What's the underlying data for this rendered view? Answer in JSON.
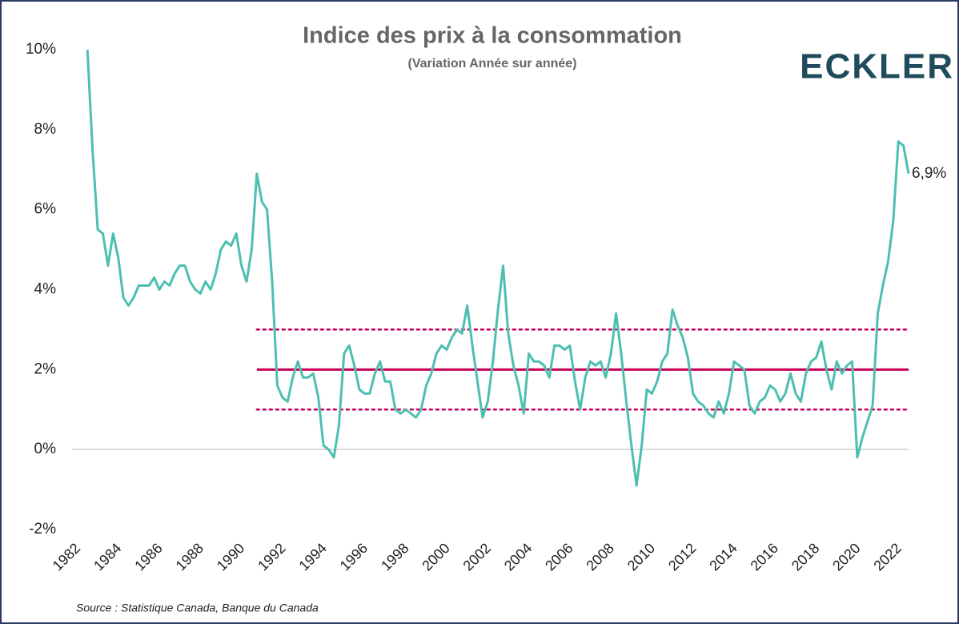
{
  "chart_data": {
    "type": "line",
    "title": "Indice des prix à la consommation",
    "subtitle": "(Variation Année sur année)",
    "brand": "ECKLER",
    "source": "Source : Statistique Canada, Banque du Canada",
    "x": [
      1982.75,
      1983,
      1983.25,
      1983.5,
      1983.75,
      1984,
      1984.25,
      1984.5,
      1984.75,
      1985,
      1985.25,
      1985.5,
      1985.75,
      1986,
      1986.25,
      1986.5,
      1986.75,
      1987,
      1987.25,
      1987.5,
      1987.75,
      1988,
      1988.25,
      1988.5,
      1988.75,
      1989,
      1989.25,
      1989.5,
      1989.75,
      1990,
      1990.25,
      1990.5,
      1990.75,
      1991,
      1991.25,
      1991.5,
      1991.75,
      1992,
      1992.25,
      1992.5,
      1992.75,
      1993,
      1993.25,
      1993.5,
      1993.75,
      1994,
      1994.25,
      1994.5,
      1994.75,
      1995,
      1995.25,
      1995.5,
      1995.75,
      1996,
      1996.25,
      1996.5,
      1996.75,
      1997,
      1997.25,
      1997.5,
      1997.75,
      1998,
      1998.25,
      1998.5,
      1998.75,
      1999,
      1999.25,
      1999.5,
      1999.75,
      2000,
      2000.25,
      2000.5,
      2000.75,
      2001,
      2001.25,
      2001.5,
      2001.75,
      2002,
      2002.25,
      2002.5,
      2002.75,
      2003,
      2003.25,
      2003.5,
      2003.75,
      2004,
      2004.25,
      2004.5,
      2004.75,
      2005,
      2005.25,
      2005.5,
      2005.75,
      2006,
      2006.25,
      2006.5,
      2006.75,
      2007,
      2007.25,
      2007.5,
      2007.75,
      2008,
      2008.25,
      2008.5,
      2008.75,
      2009,
      2009.25,
      2009.5,
      2009.75,
      2010,
      2010.25,
      2010.5,
      2010.75,
      2011,
      2011.25,
      2011.5,
      2011.75,
      2012,
      2012.25,
      2012.5,
      2012.75,
      2013,
      2013.25,
      2013.5,
      2013.75,
      2014,
      2014.25,
      2014.5,
      2014.75,
      2015,
      2015.25,
      2015.5,
      2015.75,
      2016,
      2016.25,
      2016.5,
      2016.75,
      2017,
      2017.25,
      2017.5,
      2017.75,
      2018,
      2018.25,
      2018.5,
      2018.75,
      2019,
      2019.25,
      2019.5,
      2019.75,
      2020,
      2020.25,
      2020.5,
      2020.75,
      2021,
      2021.25,
      2021.5,
      2021.75,
      2022,
      2022.25,
      2022.5,
      2022.75
    ],
    "series": [
      {
        "color": "#4dbfb1",
        "values": [
          10,
          7.5,
          5.5,
          5.4,
          4.6,
          5.4,
          4.8,
          3.8,
          3.6,
          3.8,
          4.1,
          4.1,
          4.1,
          4.3,
          4.0,
          4.2,
          4.1,
          4.4,
          4.6,
          4.6,
          4.2,
          4.0,
          3.9,
          4.2,
          4.0,
          4.4,
          5.0,
          5.2,
          5.1,
          5.4,
          4.6,
          4.2,
          5.0,
          6.9,
          6.2,
          6.0,
          4.2,
          1.6,
          1.3,
          1.2,
          1.8,
          2.2,
          1.8,
          1.8,
          1.9,
          1.3,
          0.1,
          0.0,
          -0.2,
          0.6,
          2.4,
          2.6,
          2.1,
          1.5,
          1.4,
          1.4,
          1.9,
          2.2,
          1.7,
          1.7,
          1.0,
          0.9,
          1.0,
          0.9,
          0.8,
          1.0,
          1.6,
          1.9,
          2.4,
          2.6,
          2.5,
          2.8,
          3.0,
          2.9,
          3.6,
          2.6,
          1.7,
          0.8,
          1.2,
          2.2,
          3.5,
          4.6,
          2.9,
          2.1,
          1.6,
          0.9,
          2.4,
          2.2,
          2.2,
          2.1,
          1.8,
          2.6,
          2.6,
          2.5,
          2.6,
          1.7,
          1.0,
          1.8,
          2.2,
          2.1,
          2.2,
          1.8,
          2.4,
          3.4,
          2.4,
          1.2,
          0.1,
          -0.9,
          0.1,
          1.5,
          1.4,
          1.7,
          2.2,
          2.4,
          3.5,
          3.1,
          2.8,
          2.3,
          1.4,
          1.2,
          1.1,
          0.9,
          0.8,
          1.2,
          0.9,
          1.4,
          2.2,
          2.1,
          2.0,
          1.1,
          0.9,
          1.2,
          1.3,
          1.6,
          1.5,
          1.2,
          1.4,
          1.9,
          1.4,
          1.2,
          1.9,
          2.2,
          2.3,
          2.7,
          2.0,
          1.5,
          2.2,
          1.9,
          2.1,
          2.2,
          -0.2,
          0.3,
          0.7,
          1.1,
          3.4,
          4.1,
          4.7,
          5.7,
          7.7,
          7.6,
          6.9
        ]
      }
    ],
    "end_label": "6,9%",
    "target": {
      "start": 1991,
      "center": 2,
      "low": 1,
      "high": 3,
      "color": "#c8005a"
    },
    "xlim": [
      1982,
      2022.75
    ],
    "xticks": [
      1982,
      1984,
      1986,
      1988,
      1990,
      1992,
      1994,
      1996,
      1998,
      2000,
      2002,
      2004,
      2006,
      2008,
      2010,
      2012,
      2014,
      2016,
      2018,
      2020,
      2022
    ],
    "ylim": [
      -2,
      10
    ],
    "yticks": [
      {
        "value": -2,
        "label": "-2%"
      },
      {
        "value": 0,
        "label": "0%"
      },
      {
        "value": 2,
        "label": "2%"
      },
      {
        "value": 4,
        "label": "4%"
      },
      {
        "value": 6,
        "label": "6%"
      },
      {
        "value": 8,
        "label": "8%"
      },
      {
        "value": 10,
        "label": "10%"
      }
    ]
  }
}
